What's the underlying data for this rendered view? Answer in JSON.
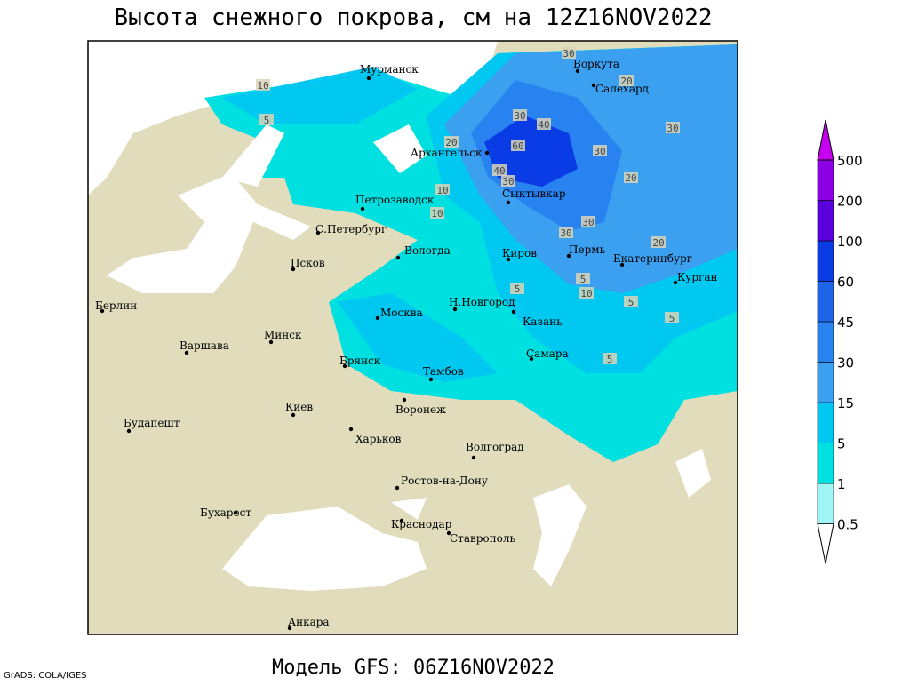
{
  "title": "Высота снежного покрова, см на 12Z16NOV2022",
  "footer": "Модель GFS: 06Z16NOV2022",
  "credit": "GrADS: COLA/IGES",
  "cities": [
    "Мурманск",
    "Воркута",
    "Салехард",
    "Архангельск",
    "Сыктывкар",
    "Петрозаводск",
    "С.Петербург",
    "Вологда",
    "Киров",
    "Пермь",
    "Екатеринбург",
    "Курган",
    "Псков",
    "Берлин",
    "Москва",
    "Н.Новгород",
    "Казань",
    "Варшава",
    "Минск",
    "Брянск",
    "Тамбов",
    "Самара",
    "Киев",
    "Воронеж",
    "Будапешт",
    "Харьков",
    "Волгоград",
    "Ростов-на-Дону",
    "Бухарест",
    "Краснодар",
    "Ставрополь",
    "Анкара"
  ],
  "contour_labels": [
    30,
    10,
    5,
    20,
    20,
    30,
    40,
    60,
    40,
    30,
    30,
    30,
    20,
    10,
    30,
    30,
    20,
    10,
    5,
    5,
    10,
    5,
    5,
    5
  ],
  "colorbar": {
    "levels": [
      0.5,
      1,
      5,
      15,
      30,
      45,
      60,
      100,
      200,
      500
    ],
    "colors": [
      "#ffffff",
      "#a0f5f5",
      "#00e0e0",
      "#00c8f0",
      "#3ca0f0",
      "#2882f0",
      "#1e64e6",
      "#0a3ce6",
      "#5a00dc",
      "#8c00e6",
      "#c800f0"
    ]
  }
}
